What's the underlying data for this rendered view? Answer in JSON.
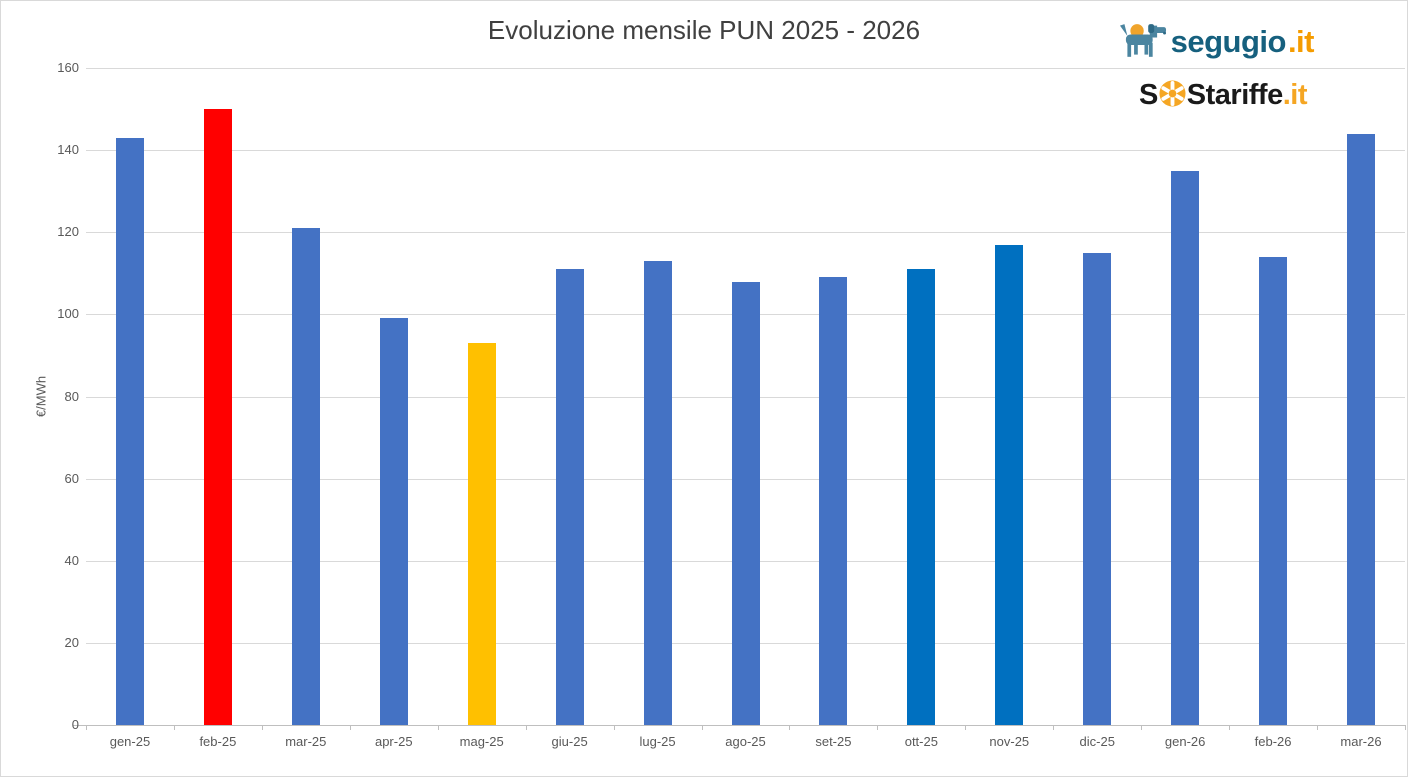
{
  "page": {
    "title": "Evoluzione mensile PUN 2025 - 2026"
  },
  "branding": {
    "segugio": {
      "word": "segugio",
      "tld": ".it",
      "word_color": "#16607e",
      "tld_color": "#f59c00",
      "dog_color": "#4b85a0",
      "ball_color": "#f0a42c"
    },
    "sostariffe": {
      "prefix": "S",
      "rest": "Stariffe",
      "tld": ".it",
      "text_color": "#1a1a1a",
      "accent_color": "#f5a623"
    }
  },
  "chart_data": {
    "type": "bar",
    "title": "Evoluzione mensile PUN 2025 - 2026",
    "xlabel": "",
    "ylabel": "€/MWh",
    "ylim": [
      0,
      160
    ],
    "ytick_step": 20,
    "grid": true,
    "legend_position": "none",
    "categories": [
      "gen-25",
      "feb-25",
      "mar-25",
      "apr-25",
      "mag-25",
      "giu-25",
      "lug-25",
      "ago-25",
      "set-25",
      "ott-25",
      "nov-25",
      "dic-25",
      "gen-26",
      "feb-26",
      "mar-26"
    ],
    "values": [
      143,
      150,
      121,
      99,
      93,
      111,
      113,
      108,
      109,
      111,
      117,
      115,
      135,
      114,
      144
    ],
    "bar_colors": [
      "#4472C4",
      "#FF0000",
      "#4472C4",
      "#4472C4",
      "#FFC000",
      "#4472C4",
      "#4472C4",
      "#4472C4",
      "#4472C4",
      "#0070C0",
      "#0070C0",
      "#4472C4",
      "#4472C4",
      "#4472C4",
      "#4472C4"
    ],
    "colors": {
      "default_bar": "#4472C4",
      "highlight_red": "#FF0000",
      "highlight_gold": "#FFC000",
      "highlight_blue": "#0070C0",
      "gridline": "#d9d9d9",
      "axis": "#bfbfbf",
      "tick_text": "#595959",
      "title_text": "#404040"
    }
  }
}
